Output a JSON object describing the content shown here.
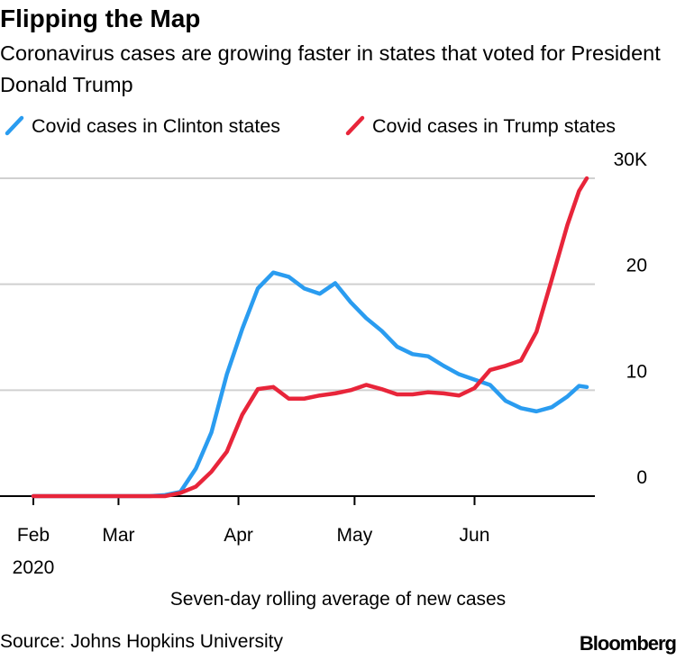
{
  "chart_data": {
    "type": "line",
    "title": "Flipping the Map",
    "subtitle": "Coronavirus cases are growing faster in states that voted for President Donald Trump",
    "xlabel": "Seven-day rolling average of new cases",
    "source": "Source: Johns Hopkins University",
    "brand": "Bloomberg",
    "x": [
      0,
      30,
      34,
      38,
      42,
      46,
      50,
      54,
      58,
      62,
      66,
      70,
      74,
      78,
      82,
      86,
      90,
      94,
      98,
      102,
      106,
      110,
      114,
      118,
      122,
      126,
      130,
      134,
      138,
      141,
      143
    ],
    "series": [
      {
        "name": "Covid cases in Clinton states",
        "color": "#2a9cf0",
        "values": [
          0,
          0,
          0.1,
          0.4,
          2.6,
          6.0,
          11.5,
          15.8,
          19.6,
          21.1,
          20.7,
          19.6,
          19.1,
          20.1,
          18.3,
          16.8,
          15.6,
          14.1,
          13.4,
          13.2,
          12.3,
          11.5,
          11.0,
          10.5,
          9.0,
          8.3,
          8.0,
          8.4,
          9.4,
          10.4,
          10.3
        ]
      },
      {
        "name": "Covid cases in Trump states",
        "color": "#e8253a",
        "values": [
          0,
          0,
          0,
          0.3,
          0.9,
          2.3,
          4.2,
          7.7,
          10.1,
          10.3,
          9.2,
          9.2,
          9.5,
          9.7,
          10.0,
          10.5,
          10.1,
          9.6,
          9.6,
          9.8,
          9.7,
          9.5,
          10.2,
          11.9,
          12.3,
          12.8,
          15.5,
          20.5,
          25.6,
          28.8,
          30.0
        ]
      }
    ],
    "xlim": [
      0,
      143
    ],
    "xticks": [
      {
        "value": 0,
        "label": "Feb"
      },
      {
        "value": 22,
        "label": "Mar"
      },
      {
        "value": 53,
        "label": "Apr"
      },
      {
        "value": 83,
        "label": "May"
      },
      {
        "value": 114,
        "label": "Jun"
      }
    ],
    "xtick_sublabel": "2020",
    "ylim": [
      0,
      30
    ],
    "yticks": [
      0,
      10,
      20,
      {
        "value": 30,
        "label": "30K"
      }
    ],
    "grid": true
  }
}
